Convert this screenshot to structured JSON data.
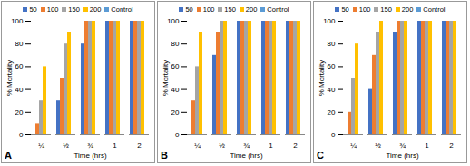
{
  "chart_data": [
    {
      "type": "bar",
      "title": "A",
      "x_label": "Time (hrs)",
      "y_label": "% Mortality",
      "categories": [
        "¼",
        "½",
        "¾",
        "1",
        "2"
      ],
      "series": [
        {
          "name": "50",
          "color": "#4472c4",
          "values": [
            0,
            30,
            80,
            100,
            100
          ]
        },
        {
          "name": "100",
          "color": "#ed7d31",
          "values": [
            10,
            50,
            100,
            100,
            100
          ]
        },
        {
          "name": "150",
          "color": "#a5a5a5",
          "values": [
            30,
            80,
            100,
            100,
            100
          ]
        },
        {
          "name": "200",
          "color": "#ffc000",
          "values": [
            60,
            90,
            100,
            100,
            100
          ]
        },
        {
          "name": "Control",
          "color": "#5b9bd5",
          "values": [
            0,
            0,
            0,
            0,
            0
          ]
        }
      ],
      "ylim": [
        0,
        100
      ],
      "yticks": [
        0,
        20,
        40,
        60,
        80,
        100
      ],
      "grid": false,
      "legend": "top"
    },
    {
      "type": "bar",
      "title": "B",
      "x_label": "Time (hrs)",
      "y_label": "% Mortality",
      "categories": [
        "¼",
        "½",
        "¾",
        "1",
        "2"
      ],
      "series": [
        {
          "name": "50",
          "color": "#4472c4",
          "values": [
            0,
            70,
            100,
            100,
            100
          ]
        },
        {
          "name": "100",
          "color": "#ed7d31",
          "values": [
            30,
            90,
            100,
            100,
            100
          ]
        },
        {
          "name": "150",
          "color": "#a5a5a5",
          "values": [
            60,
            100,
            100,
            100,
            100
          ]
        },
        {
          "name": "200",
          "color": "#ffc000",
          "values": [
            90,
            100,
            100,
            100,
            100
          ]
        },
        {
          "name": "Control",
          "color": "#5b9bd5",
          "values": [
            0,
            0,
            0,
            0,
            0
          ]
        }
      ],
      "ylim": [
        0,
        100
      ],
      "yticks": [
        0,
        20,
        40,
        60,
        80,
        100
      ],
      "grid": false,
      "legend": "top"
    },
    {
      "type": "bar",
      "title": "C",
      "x_label": "Time (hrs)",
      "y_label": "% Mortality",
      "categories": [
        "¼",
        "½",
        "¾",
        "1",
        "2"
      ],
      "series": [
        {
          "name": "50",
          "color": "#4472c4",
          "values": [
            0,
            40,
            90,
            100,
            100
          ]
        },
        {
          "name": "100",
          "color": "#ed7d31",
          "values": [
            20,
            70,
            100,
            100,
            100
          ]
        },
        {
          "name": "150",
          "color": "#a5a5a5",
          "values": [
            50,
            90,
            100,
            100,
            100
          ]
        },
        {
          "name": "200",
          "color": "#ffc000",
          "values": [
            80,
            100,
            100,
            100,
            100
          ]
        },
        {
          "name": "Control",
          "color": "#5b9bd5",
          "values": [
            0,
            0,
            0,
            0,
            0
          ]
        }
      ],
      "ylim": [
        0,
        100
      ],
      "yticks": [
        0,
        20,
        40,
        60,
        80,
        100
      ],
      "grid": false,
      "legend": "top"
    }
  ]
}
